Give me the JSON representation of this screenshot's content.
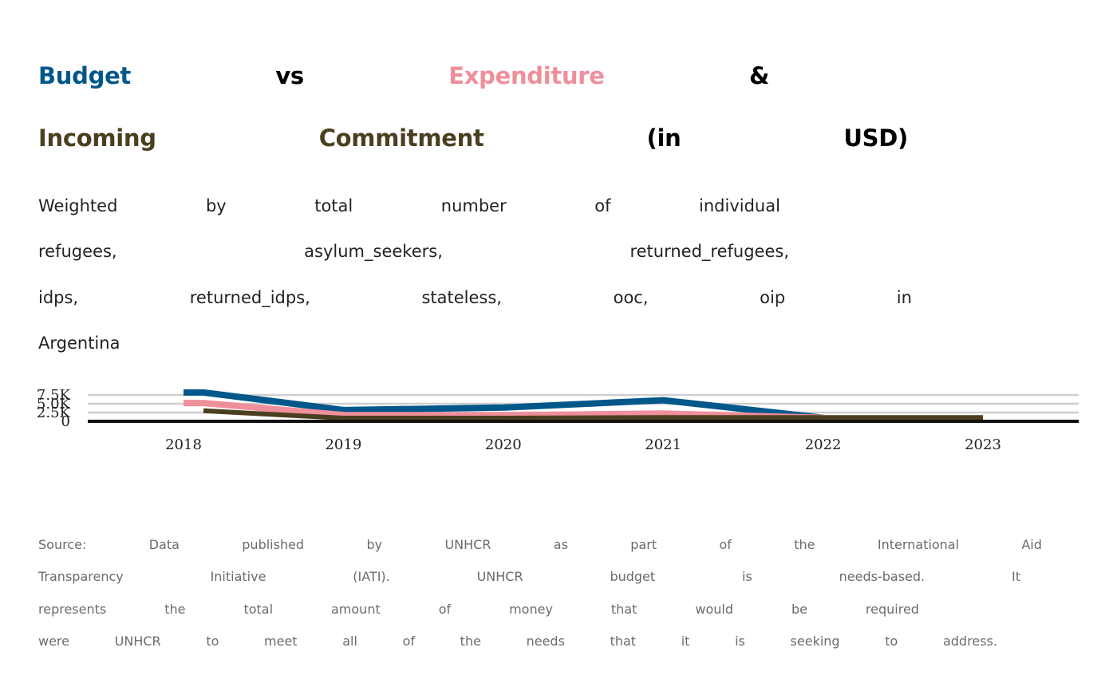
{
  "title": {
    "line1": [
      "Budget",
      "vs",
      "Expenditure",
      "&"
    ],
    "line2": [
      "Incoming",
      "Commitment",
      "(in",
      "USD)"
    ]
  },
  "subtitle": {
    "line1": [
      "Weighted",
      "by",
      "total",
      "number",
      "of",
      "individual"
    ],
    "line2": [
      "refugees,",
      "asylum_seekers,",
      "returned_refugees,"
    ],
    "line3": [
      "idps,",
      "returned_idps,",
      "stateless,",
      "ooc,",
      "oip",
      "in"
    ],
    "line4": [
      "Argentina"
    ]
  },
  "source": {
    "line1": [
      "Source:",
      "Data",
      "published",
      "by",
      "UNHCR",
      "as",
      "part",
      "of",
      "the",
      "International",
      "Aid"
    ],
    "line2": [
      "Transparency",
      "Initiative",
      "(IATI).",
      "UNHCR",
      "budget",
      "is",
      "needs-based.",
      "It"
    ],
    "line3": [
      "represents",
      "the",
      "total",
      "amount",
      "of",
      "money",
      "that",
      "would",
      "be",
      "required"
    ],
    "line4": [
      "were",
      "UNHCR",
      "to",
      "meet",
      "all",
      "of",
      "the",
      "needs",
      "that",
      "it",
      "is",
      "seeking",
      "to",
      "address."
    ]
  },
  "chart_data": {
    "type": "line",
    "x": [
      "2018",
      "2019",
      "2020",
      "2021",
      "2022",
      "2023"
    ],
    "y_ticks": [
      "0",
      "2.5K",
      "5.0K",
      "7.5K"
    ],
    "ylim": [
      0,
      7500
    ],
    "grid": true,
    "series": [
      {
        "name": "Budget",
        "color": "#00578a",
        "values": [
          8200,
          3200,
          3900,
          6000,
          1000,
          null
        ]
      },
      {
        "name": "Expenditure",
        "color": "#ef8f9b",
        "values": [
          5200,
          1800,
          1700,
          2200,
          1000,
          null
        ]
      },
      {
        "name": "Incoming Commitment",
        "color": "#4a3f1e",
        "values": [
          3000,
          900,
          900,
          1100,
          1100,
          1100
        ]
      }
    ]
  }
}
